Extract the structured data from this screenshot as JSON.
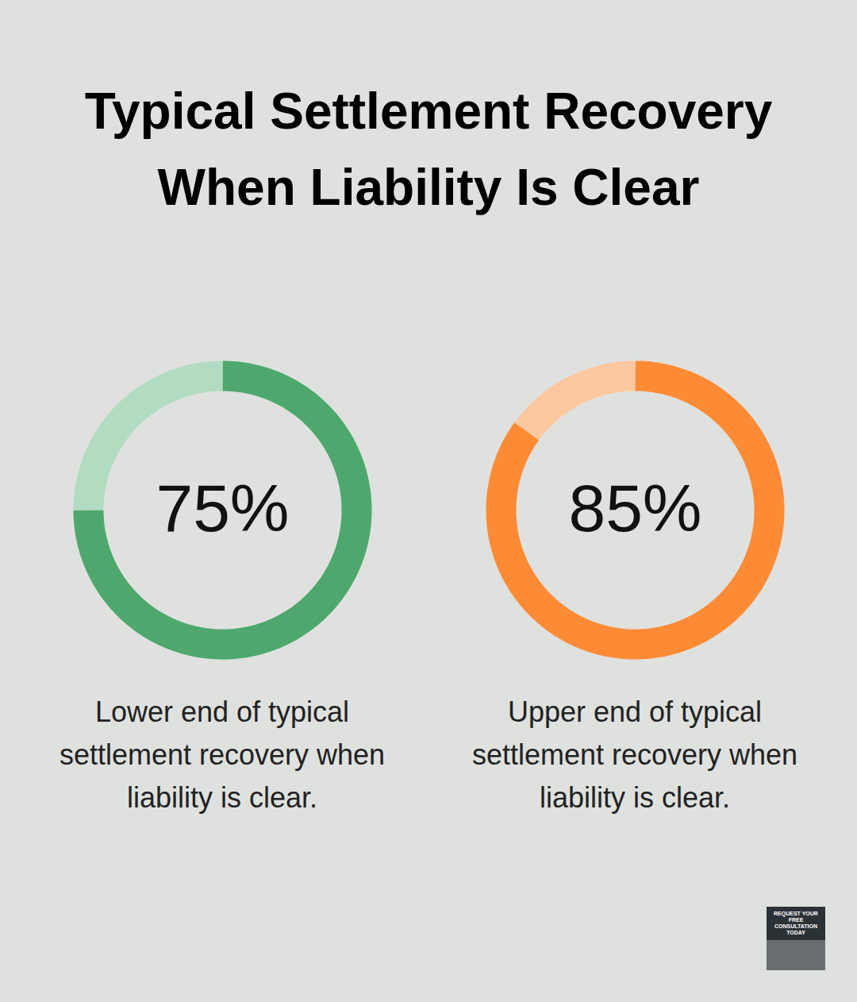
{
  "title": "Typical Settlement Recovery When Liability Is Clear",
  "badge": "REQUEST YOUR FREE CONSULTATION TODAY",
  "chart_data": [
    {
      "type": "donut",
      "values": [
        75,
        25
      ],
      "value_labels": [
        "75%",
        null
      ],
      "data_labels": true,
      "colors": [
        "#4ea86d",
        "#b2dcc2"
      ],
      "caption": "Lower end of typical settlement recovery when liability is clear."
    },
    {
      "type": "donut",
      "values": [
        85,
        15
      ],
      "value_labels": [
        "85%",
        null
      ],
      "data_labels": true,
      "colors": [
        "#fd8b36",
        "#fdc89f"
      ],
      "caption": "Upper end of typical settlement recovery when liability is clear."
    }
  ]
}
